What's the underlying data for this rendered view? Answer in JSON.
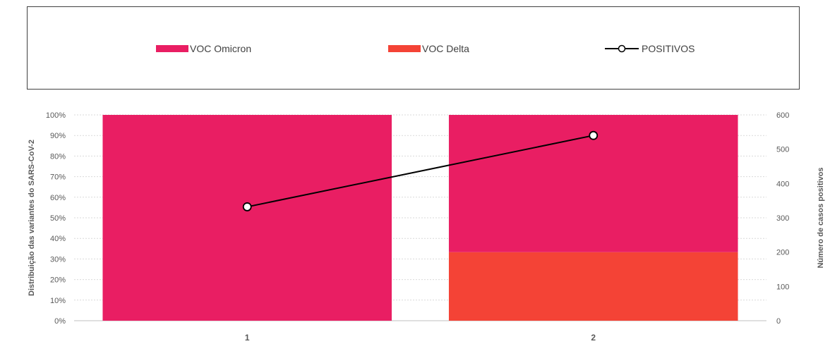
{
  "legend": {
    "items": [
      {
        "label": "VOC Omicron",
        "color": "#E91E63",
        "kind": "bar"
      },
      {
        "label": "VOC Delta",
        "color": "#F44336",
        "kind": "bar"
      },
      {
        "label": "POSITIVOS",
        "color": "#000000",
        "kind": "line"
      }
    ]
  },
  "chart_data": {
    "type": "bar",
    "stacked": true,
    "categories": [
      "1",
      "2"
    ],
    "series": [
      {
        "name": "VOC Delta",
        "axis": "left",
        "color": "#F44336",
        "values": [
          0,
          33.3
        ]
      },
      {
        "name": "VOC Omicron",
        "axis": "left",
        "color": "#E91E63",
        "values": [
          100,
          66.7
        ]
      },
      {
        "name": "POSITIVOS",
        "axis": "right",
        "type": "line",
        "color": "#000000",
        "values": [
          332,
          540
        ]
      }
    ],
    "ylabel": "Distribuição das variantes do SARS-CoV-2",
    "y2label": "Número de casos positivos",
    "ylim": [
      0,
      100
    ],
    "y2lim": [
      0,
      600
    ],
    "yticks": [
      "0%",
      "10%",
      "20%",
      "30%",
      "40%",
      "50%",
      "60%",
      "70%",
      "80%",
      "90%",
      "100%"
    ],
    "y2ticks": [
      "0",
      "100",
      "200",
      "300",
      "400",
      "500",
      "600"
    ],
    "grid": true,
    "legend_position": "top"
  }
}
